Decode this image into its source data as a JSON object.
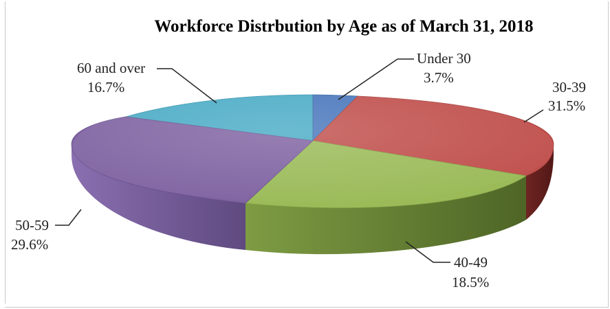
{
  "chart_data": {
    "type": "pie",
    "title": "Workforce Distrbution by Age as of March 31, 2018",
    "slices": [
      {
        "label": "Under 30",
        "value": 3.7,
        "value_label": "3.7%",
        "color": "#4a77bc"
      },
      {
        "label": "30-39",
        "value": 31.5,
        "value_label": "31.5%",
        "color": "#c0504d"
      },
      {
        "label": "40-49",
        "value": 18.5,
        "value_label": "18.5%",
        "color": "#9bbb59"
      },
      {
        "label": "50-59",
        "value": 29.6,
        "value_label": "29.6%",
        "color": "#8064a2"
      },
      {
        "label": "60 and over",
        "value": 16.7,
        "value_label": "16.7%",
        "color": "#4bacc6"
      }
    ],
    "legend": false,
    "style": "3d-exploded-pie"
  }
}
